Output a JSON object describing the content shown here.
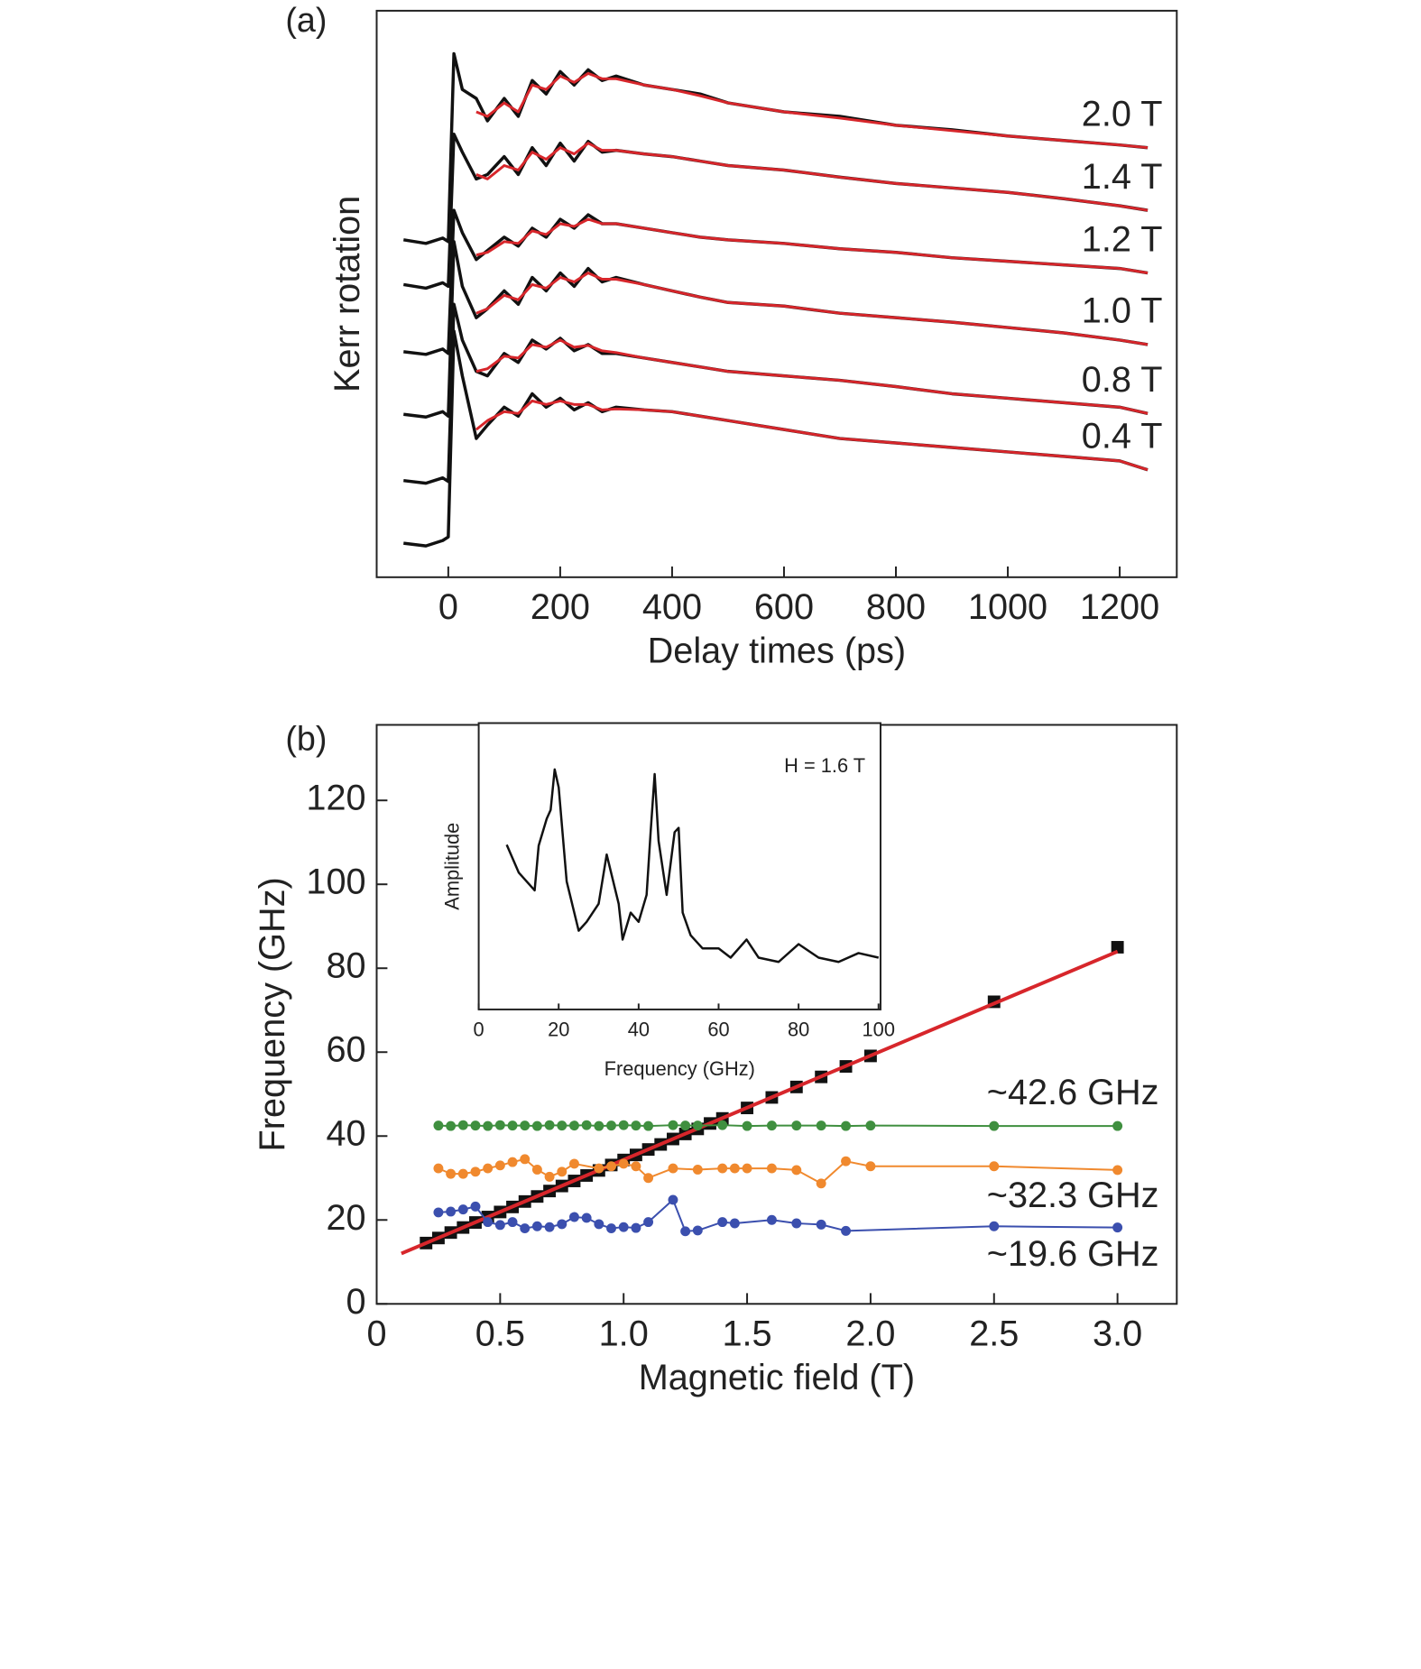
{
  "chart_data": [
    {
      "type": "line",
      "label": "(a)",
      "xlabel": "Delay times (ps)",
      "ylabel": "Kerr rotation",
      "xlim": [
        -128,
        1302
      ],
      "xticks": [
        0,
        200,
        400,
        600,
        800,
        1000,
        1200
      ],
      "ylim": [
        0,
        633
      ],
      "x": [
        -80,
        -40,
        -10,
        0,
        10,
        25,
        50,
        70,
        100,
        125,
        150,
        175,
        200,
        225,
        250,
        275,
        300,
        350,
        400,
        450,
        500,
        600,
        700,
        800,
        900,
        1000,
        1100,
        1200,
        1250
      ],
      "fit_x": [
        50,
        70,
        100,
        125,
        150,
        175,
        200,
        225,
        250,
        275,
        300,
        350,
        400,
        450,
        500,
        600,
        700,
        800,
        900,
        1000,
        1100,
        1200,
        1250
      ],
      "series": [
        {
          "name": "2.0 T",
          "color": "#111111",
          "values": [
            377,
            373,
            379,
            375,
            585,
            545,
            535,
            510,
            535,
            515,
            555,
            540,
            565,
            550,
            567,
            555,
            560,
            550,
            545,
            540,
            530,
            520,
            515,
            505,
            500,
            493,
            488,
            483,
            480
          ],
          "fit": {
            "color": "#d7262b",
            "values": [
              520,
              515,
              530,
              520,
              550,
              545,
              560,
              553,
              563,
              557,
              557,
              550,
              545,
              538,
              530,
              520,
              513,
              505,
              499,
              493,
              488,
              483,
              480
            ]
          }
        },
        {
          "name": "1.4 T",
          "color": "#111111",
          "values": [
            327,
            323,
            329,
            325,
            495,
            475,
            445,
            450,
            470,
            450,
            480,
            460,
            485,
            465,
            487,
            475,
            477,
            473,
            470,
            465,
            460,
            455,
            447,
            440,
            435,
            430,
            423,
            415,
            410
          ],
          "fit": {
            "color": "#d7262b",
            "values": [
              450,
              445,
              460,
              455,
              475,
              467,
              480,
              473,
              485,
              477,
              477,
              473,
              470,
              465,
              460,
              455,
              447,
              440,
              435,
              430,
              423,
              415,
              410
            ]
          }
        },
        {
          "name": "1.2 T",
          "color": "#111111",
          "values": [
            252,
            249,
            255,
            250,
            410,
            385,
            355,
            365,
            380,
            370,
            390,
            380,
            400,
            390,
            405,
            395,
            395,
            390,
            385,
            380,
            377,
            373,
            367,
            363,
            357,
            353,
            349,
            345,
            340
          ],
          "fit": {
            "color": "#d7262b",
            "values": [
              360,
              363,
              375,
              373,
              387,
              383,
              395,
              392,
              400,
              395,
              395,
              390,
              385,
              380,
              377,
              373,
              367,
              363,
              357,
              353,
              349,
              345,
              340
            ]
          }
        },
        {
          "name": "1.0 T",
          "color": "#111111",
          "values": [
            182,
            179,
            185,
            180,
            375,
            325,
            290,
            300,
            320,
            305,
            335,
            320,
            340,
            325,
            345,
            330,
            335,
            327,
            320,
            313,
            307,
            303,
            295,
            290,
            285,
            279,
            273,
            265,
            260
          ],
          "fit": {
            "color": "#d7262b",
            "values": [
              295,
              300,
              315,
              310,
              327,
              323,
              335,
              330,
              340,
              333,
              333,
              327,
              320,
              313,
              307,
              303,
              295,
              290,
              285,
              279,
              273,
              265,
              260
            ]
          }
        },
        {
          "name": "0.8 T",
          "color": "#111111",
          "values": [
            108,
            105,
            111,
            107,
            305,
            265,
            230,
            225,
            250,
            240,
            265,
            255,
            267,
            253,
            260,
            250,
            250,
            245,
            240,
            235,
            230,
            225,
            220,
            213,
            205,
            200,
            195,
            190,
            183
          ],
          "fit": {
            "color": "#d7262b",
            "values": [
              230,
              233,
              247,
              245,
              260,
              257,
              265,
              257,
              259,
              253,
              251,
              245,
              240,
              235,
              230,
              225,
              220,
              213,
              205,
              200,
              195,
              190,
              183
            ]
          }
        },
        {
          "name": "0.4 T",
          "color": "#111111",
          "values": [
            38,
            35,
            41,
            45,
            275,
            225,
            155,
            170,
            190,
            180,
            205,
            190,
            200,
            187,
            195,
            185,
            190,
            187,
            185,
            180,
            175,
            165,
            155,
            150,
            145,
            140,
            135,
            130,
            120
          ],
          "fit": {
            "color": "#d7262b",
            "values": [
              165,
              175,
              185,
              183,
              197,
              193,
              197,
              193,
              193,
              187,
              188,
              187,
              185,
              180,
              175,
              165,
              155,
              150,
              145,
              140,
              135,
              130,
              120
            ]
          }
        }
      ]
    },
    {
      "type": "scatter",
      "label": "(b)",
      "xlabel": "Magnetic field (T)",
      "ylabel": "Frequency (GHz)",
      "xlim": [
        0,
        3.24
      ],
      "xticks": [
        0,
        0.5,
        {
          "value": 1.0,
          "label": "1.0"
        },
        1.5,
        {
          "value": 2.0,
          "label": "2.0"
        },
        2.5,
        {
          "value": 3.0,
          "label": "3.0"
        }
      ],
      "ylim": [
        0,
        138
      ],
      "yticks": [
        0,
        20,
        40,
        60,
        80,
        100,
        120
      ],
      "series": [
        {
          "color": "#111111",
          "marker": "square",
          "line": false,
          "x": [
            0.2,
            0.25,
            0.3,
            0.35,
            0.4,
            0.45,
            0.5,
            0.55,
            0.6,
            0.65,
            0.7,
            0.75,
            0.8,
            0.85,
            0.9,
            0.95,
            1.0,
            1.05,
            1.1,
            1.15,
            1.2,
            1.25,
            1.3,
            1.35,
            1.4,
            1.5,
            1.6,
            1.7,
            1.8,
            1.9,
            2.0,
            2.5,
            3.0
          ],
          "values": [
            14.5,
            15.7,
            17,
            18.2,
            19.4,
            20.7,
            21.9,
            23.1,
            24.4,
            25.6,
            26.9,
            28.1,
            29.3,
            30.6,
            31.8,
            33.1,
            34.3,
            35.5,
            36.8,
            38,
            39.3,
            40.5,
            41.7,
            43,
            44.2,
            46.7,
            49.2,
            51.7,
            54.1,
            56.6,
            59.1,
            72,
            85
          ]
        },
        {
          "color": "#d7262b",
          "x": [
            0.1,
            3.0
          ],
          "values": [
            12,
            84
          ]
        },
        {
          "name": "~42.6 GHz",
          "color": "#3f8f3f",
          "marker": "circle",
          "x": [
            0.25,
            0.3,
            0.35,
            0.4,
            0.45,
            0.5,
            0.55,
            0.6,
            0.65,
            0.7,
            0.75,
            0.8,
            0.85,
            0.9,
            0.95,
            1.0,
            1.05,
            1.1,
            1.2,
            1.25,
            1.3,
            1.4,
            1.5,
            1.6,
            1.7,
            1.8,
            1.9,
            2.0,
            2.5,
            3.0
          ],
          "values": [
            42.5,
            42.4,
            42.6,
            42.5,
            42.4,
            42.6,
            42.5,
            42.5,
            42.4,
            42.6,
            42.5,
            42.5,
            42.6,
            42.4,
            42.5,
            42.6,
            42.5,
            42.4,
            42.6,
            42.5,
            42.5,
            42.6,
            42.4,
            42.5,
            42.5,
            42.5,
            42.4,
            42.5,
            42.4,
            42.4
          ]
        },
        {
          "name": "~32.3 GHz",
          "color": "#f0892e",
          "marker": "circle",
          "x": [
            0.25,
            0.3,
            0.35,
            0.4,
            0.45,
            0.5,
            0.55,
            0.6,
            0.65,
            0.7,
            0.75,
            0.8,
            0.9,
            0.95,
            1.0,
            1.05,
            1.1,
            1.2,
            1.3,
            1.4,
            1.45,
            1.5,
            1.6,
            1.7,
            1.8,
            1.9,
            2.0,
            2.5,
            3.0
          ],
          "values": [
            32.3,
            31,
            31,
            31.5,
            32.3,
            33,
            33.8,
            34.5,
            32,
            30.3,
            31.5,
            33.4,
            32.3,
            32.8,
            33.4,
            32.8,
            30,
            32.3,
            32,
            32.3,
            32.3,
            32.3,
            32.3,
            31.9,
            28.7,
            34,
            32.8,
            32.8,
            31.9
          ]
        },
        {
          "name": "~19.6 GHz",
          "color": "#3b4fae",
          "marker": "circle",
          "x": [
            0.25,
            0.3,
            0.35,
            0.4,
            0.45,
            0.5,
            0.55,
            0.6,
            0.65,
            0.7,
            0.75,
            0.8,
            0.85,
            0.9,
            0.95,
            1.0,
            1.05,
            1.1,
            1.2,
            1.25,
            1.3,
            1.4,
            1.45,
            1.6,
            1.7,
            1.8,
            1.9,
            2.5,
            3.0
          ],
          "values": [
            21.8,
            22,
            22.5,
            23.2,
            19.5,
            18.8,
            19.5,
            18,
            18.5,
            18.3,
            19,
            20.7,
            20.5,
            19,
            18,
            18.3,
            18.1,
            19.5,
            24.8,
            17.3,
            17.5,
            19.5,
            19.2,
            20,
            19.2,
            18.9,
            17.4,
            18.5,
            18.2
          ]
        }
      ]
    },
    {
      "type": "line",
      "xlabel": "Frequency (GHz)",
      "ylabel": "Amplitude",
      "annotation": "H = 1.6 T",
      "xlim": [
        0,
        100.5
      ],
      "xticks": [
        0,
        20,
        40,
        60,
        80,
        100
      ],
      "ylim": [
        0,
        100
      ],
      "series": [
        {
          "color": "#111111",
          "x": [
            7,
            10,
            14,
            15,
            17,
            18,
            19,
            20,
            22,
            25,
            27,
            30,
            32,
            35,
            36,
            38,
            40,
            42,
            43,
            44,
            45,
            47,
            49,
            50,
            51,
            53,
            56,
            60,
            63,
            67,
            70,
            75,
            80,
            85,
            90,
            95,
            100
          ],
          "values": [
            57.5,
            47.8,
            41.6,
            57.2,
            66.6,
            69.7,
            83.8,
            77.5,
            44.7,
            27.5,
            30.6,
            36.9,
            54.1,
            36.9,
            24.4,
            33.8,
            30.6,
            40,
            61.9,
            82.2,
            58.8,
            40,
            61.9,
            63.4,
            33.8,
            25.9,
            21.3,
            21.3,
            18.1,
            24.4,
            18.1,
            16.6,
            22.8,
            18.1,
            16.6,
            19.7,
            18.1
          ]
        }
      ]
    }
  ]
}
